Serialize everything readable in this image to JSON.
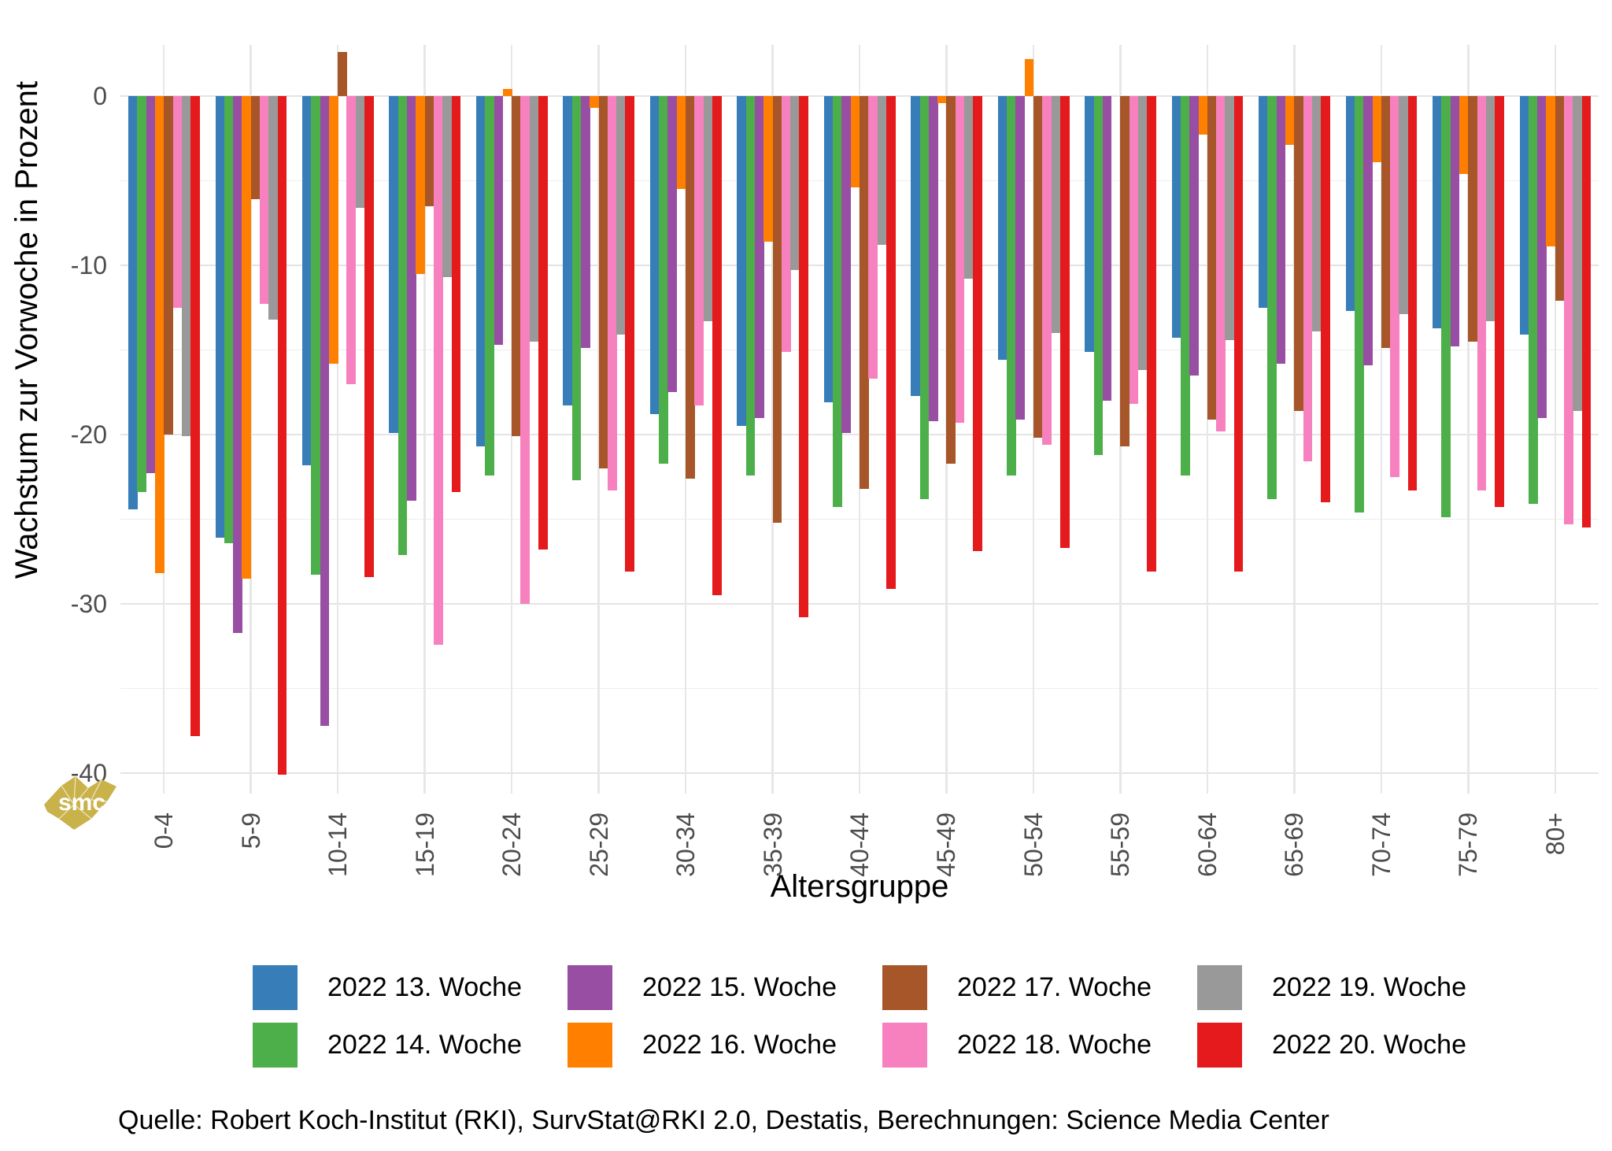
{
  "chart_data": {
    "type": "bar",
    "title": "",
    "xlabel": "Altersgruppe",
    "ylabel": "Wachstum zur Vorwoche in Prozent",
    "categories": [
      "0-4",
      "5-9",
      "10-14",
      "15-19",
      "20-24",
      "25-29",
      "30-34",
      "35-39",
      "40-44",
      "45-49",
      "50-54",
      "55-59",
      "60-64",
      "65-69",
      "70-74",
      "75-79",
      "80+"
    ],
    "series": [
      {
        "name": "2022 13. Woche",
        "color": "#377EB8",
        "values": [
          -24.4,
          -26.1,
          -21.8,
          -19.9,
          -20.7,
          -18.3,
          -18.8,
          -19.5,
          -18.1,
          -17.7,
          -15.6,
          -15.1,
          -14.3,
          -12.5,
          -12.7,
          -13.7,
          -14.1
        ]
      },
      {
        "name": "2022 14. Woche",
        "color": "#4DAF4A",
        "values": [
          -23.4,
          -26.4,
          -28.3,
          -27.1,
          -22.4,
          -22.7,
          -21.7,
          -22.4,
          -24.3,
          -23.8,
          -22.4,
          -21.2,
          -22.4,
          -23.8,
          -24.6,
          -24.9,
          -24.1
        ]
      },
      {
        "name": "2022 15. Woche",
        "color": "#984EA3",
        "values": [
          -22.3,
          -31.7,
          -37.2,
          -23.9,
          -14.7,
          -14.9,
          -17.5,
          -19.0,
          -19.9,
          -19.2,
          -19.1,
          -18.0,
          -16.5,
          -15.8,
          -15.9,
          -14.8,
          -19.0
        ]
      },
      {
        "name": "2022 16. Woche",
        "color": "#FF7F00",
        "values": [
          -28.2,
          -28.5,
          -15.8,
          -10.5,
          0.4,
          -0.7,
          -5.5,
          -8.6,
          -5.4,
          -0.4,
          2.2,
          0.0,
          -2.3,
          -2.9,
          -3.9,
          -4.6,
          -8.9
        ]
      },
      {
        "name": "2022 17. Woche",
        "color": "#A65628",
        "values": [
          -20.0,
          -6.1,
          2.6,
          -6.5,
          -20.1,
          -22.0,
          -22.6,
          -25.2,
          -23.2,
          -21.7,
          -20.2,
          -20.7,
          -19.1,
          -18.6,
          -14.9,
          -14.5,
          -12.1
        ]
      },
      {
        "name": "2022 18. Woche",
        "color": "#F781BF",
        "values": [
          -12.5,
          -12.3,
          -17.0,
          -32.4,
          -30.0,
          -23.3,
          -18.3,
          -15.1,
          -16.7,
          -19.3,
          -20.6,
          -18.2,
          -19.8,
          -21.6,
          -22.5,
          -23.3,
          -25.3
        ]
      },
      {
        "name": "2022 19. Woche",
        "color": "#999999",
        "values": [
          -20.1,
          -13.2,
          -6.6,
          -10.7,
          -14.5,
          -14.1,
          -13.3,
          -10.3,
          -8.8,
          -10.8,
          -14.0,
          -16.2,
          -14.4,
          -13.9,
          -12.9,
          -13.3,
          -18.6
        ]
      },
      {
        "name": "2022 20. Woche",
        "color": "#E41A1C",
        "values": [
          -37.8,
          -40.1,
          -28.4,
          -23.4,
          -26.8,
          -28.1,
          -29.5,
          -30.8,
          -29.1,
          -26.9,
          -26.7,
          -28.1,
          -28.1,
          -24.0,
          -23.3,
          -24.3,
          -25.5
        ]
      }
    ],
    "y_ticks": [
      0,
      -10,
      -20,
      -30,
      -40
    ],
    "y_minor_ticks": [
      -5,
      -15,
      -25,
      -35
    ],
    "ylim": [
      -41.2,
      3.0
    ],
    "grid": true,
    "legend_position": "bottom",
    "legend_display_order": [
      0,
      2,
      4,
      6,
      1,
      3,
      5,
      7
    ]
  },
  "caption": "Quelle: Robert Koch-Institut (RKI), SurvStat@RKI 2.0, Destatis, Berechnungen: Science Media Center",
  "watermark": {
    "text": "smc",
    "color": "#c9b24a"
  },
  "colors": {
    "axis_text": "#4d4d4d",
    "grid_major": "#e4e4e4",
    "grid_minor": "#eeeeee",
    "background": "#ffffff"
  }
}
